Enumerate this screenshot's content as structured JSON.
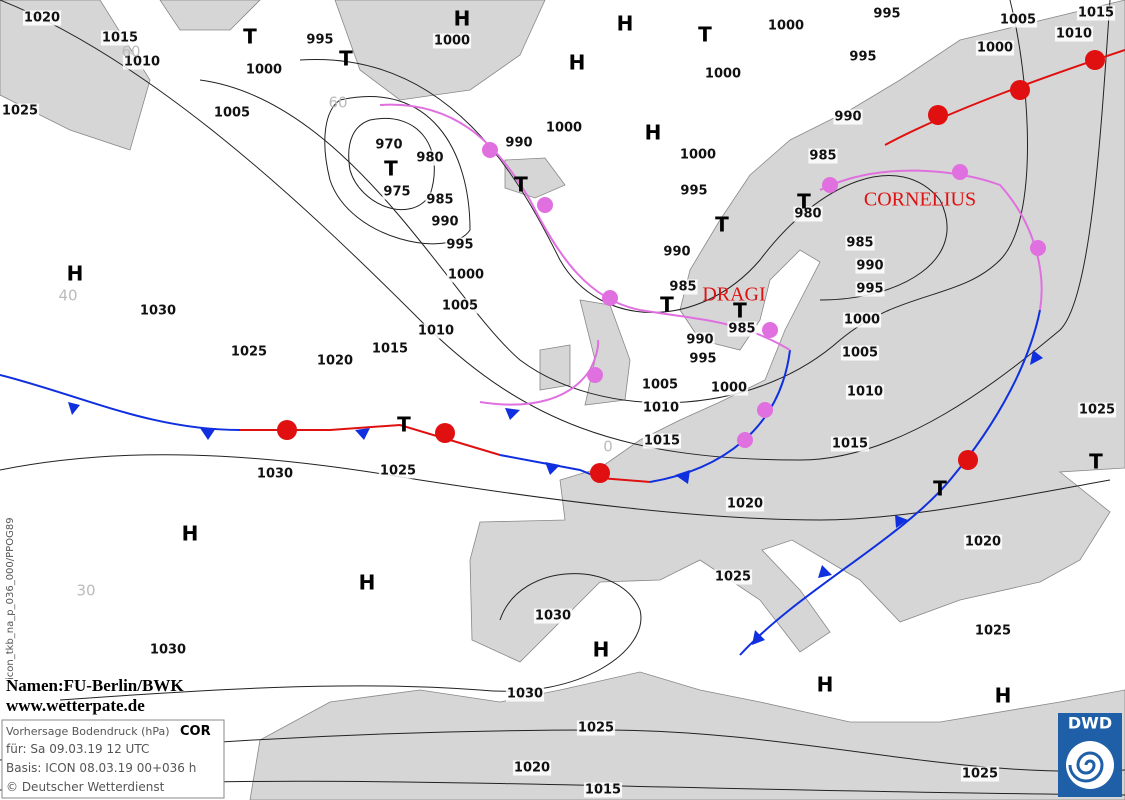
{
  "isobar_labels": [
    1020,
    1015,
    1010,
    1000,
    995,
    1005,
    1025,
    970,
    980,
    975,
    985,
    990,
    995,
    1000,
    1005,
    1010,
    1015,
    1020,
    1025,
    1030,
    990,
    1000,
    1000,
    1000,
    1000,
    995,
    1005,
    1015,
    1010,
    1000,
    995,
    990,
    985,
    980,
    985,
    990,
    995,
    1000,
    1005,
    1010,
    1015,
    1000,
    995,
    990,
    985,
    985,
    990,
    995,
    1005,
    1000,
    1010,
    1015,
    1025,
    1030,
    1020,
    1025,
    1020,
    1025,
    1030,
    1030,
    1030,
    1025,
    1025,
    1020,
    1015,
    1025
  ],
  "pressure_centers": [
    "T",
    "H",
    "H",
    "T",
    "H",
    "T",
    "H",
    "T",
    "T",
    "T",
    "T",
    "T",
    "T",
    "H",
    "T",
    "H",
    "H",
    "H",
    "H",
    "H",
    "T",
    "T"
  ],
  "cyclone_names": [
    "CORNELIUS",
    "DRAGI"
  ],
  "grid_labels": [
    "60",
    "60",
    "40",
    "30",
    "0"
  ],
  "attribution": [
    "Namen:FU-Berlin/BWK",
    "www.wetterpate.de"
  ],
  "info_box": {
    "title": "Vorhersage Bodendruck (hPa)",
    "code": "COR",
    "valid": "für:  Sa 09.03.19  12 UTC",
    "basis": "Basis: ICON  08.03.19 00+036 h",
    "copyright": "© Deutscher Wetterdienst"
  },
  "product_code": "icon_tkb_na_p_036_000/PPOG89",
  "logo": "DWD"
}
